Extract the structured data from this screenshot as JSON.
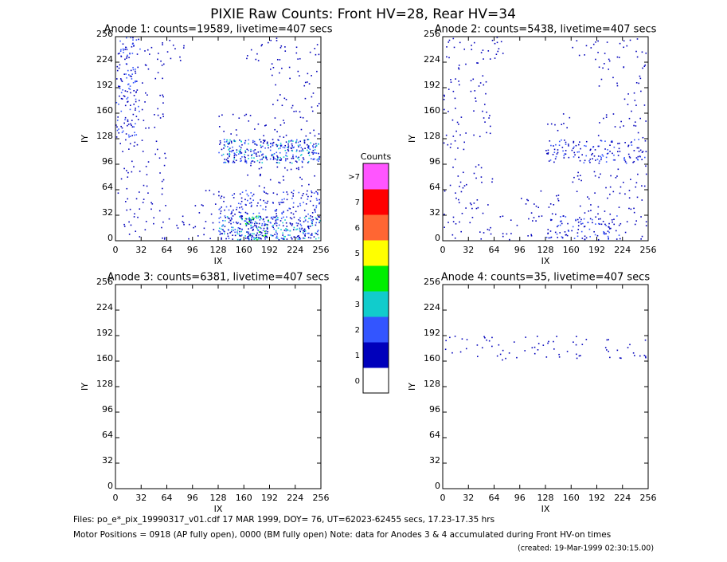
{
  "chart_data": {
    "type": "heatmap",
    "title": "PIXIE Raw Counts:  Front HV=28, Rear HV=34",
    "panels": [
      {
        "title": "Anode 1: counts=19589, livetime=407 secs",
        "xlabel": "IX",
        "ylabel": "IY",
        "xlim": [
          0,
          256
        ],
        "ylim": [
          0,
          256
        ],
        "xticks": [
          0,
          32,
          64,
          96,
          128,
          160,
          192,
          224,
          256
        ],
        "yticks": [
          0,
          32,
          64,
          96,
          128,
          160,
          192,
          224,
          256
        ],
        "density": [
          [
            2,
            1,
            1,
            0,
            0,
            1,
            1,
            1
          ],
          [
            2,
            1,
            0,
            0,
            0,
            0,
            1,
            1
          ],
          [
            2,
            1,
            0,
            0,
            0,
            0,
            1,
            1
          ],
          [
            2,
            1,
            0,
            0,
            1,
            1,
            1,
            1
          ],
          [
            1,
            1,
            0,
            0,
            3,
            3,
            3,
            3
          ],
          [
            1,
            1,
            0,
            0,
            0,
            1,
            1,
            1
          ],
          [
            1,
            1,
            0,
            1,
            2,
            2,
            2,
            2
          ],
          [
            1,
            1,
            1,
            1,
            3,
            4,
            3,
            3
          ]
        ]
      },
      {
        "title": "Anode 2: counts=5438, livetime=407 secs",
        "xlabel": "IX",
        "ylabel": "IY",
        "xlim": [
          0,
          256
        ],
        "ylim": [
          0,
          256
        ],
        "xticks": [
          0,
          32,
          64,
          96,
          128,
          160,
          192,
          224,
          256
        ],
        "yticks": [
          0,
          32,
          64,
          96,
          128,
          160,
          192,
          224,
          256
        ],
        "density": [
          [
            1,
            1,
            1,
            0,
            0,
            1,
            1,
            1
          ],
          [
            1,
            1,
            0,
            0,
            0,
            0,
            1,
            1
          ],
          [
            1,
            1,
            0,
            0,
            0,
            0,
            0,
            1
          ],
          [
            1,
            1,
            0,
            0,
            1,
            0,
            1,
            1
          ],
          [
            1,
            0,
            0,
            0,
            2,
            2,
            2,
            2
          ],
          [
            1,
            1,
            0,
            0,
            0,
            1,
            1,
            1
          ],
          [
            1,
            1,
            0,
            1,
            1,
            1,
            1,
            1
          ],
          [
            1,
            1,
            1,
            1,
            2,
            2,
            2,
            1
          ]
        ]
      },
      {
        "title": "Anode 3: counts=6381, livetime=407 secs",
        "xlabel": "IX",
        "ylabel": "IY",
        "xlim": [
          0,
          256
        ],
        "ylim": [
          0,
          256
        ],
        "xticks": [
          0,
          32,
          64,
          96,
          128,
          160,
          192,
          224,
          256
        ],
        "yticks": [
          0,
          32,
          64,
          96,
          128,
          160,
          192,
          224,
          256
        ],
        "density": [
          [
            0,
            0,
            0,
            0,
            0,
            0,
            0,
            0
          ],
          [
            0,
            0,
            0,
            0,
            0,
            0,
            0,
            0
          ],
          [
            0,
            0,
            0,
            0,
            0,
            0,
            0,
            0
          ],
          [
            0,
            0,
            0,
            0,
            0,
            0,
            0,
            0
          ],
          [
            0,
            0,
            0,
            0,
            0,
            0,
            0,
            0
          ],
          [
            0,
            0,
            0,
            0,
            0,
            0,
            0,
            0
          ],
          [
            0,
            0,
            0,
            0,
            0,
            0,
            0,
            0
          ],
          [
            0,
            0,
            0,
            0,
            0,
            0,
            0,
            0
          ]
        ]
      },
      {
        "title": "Anode 4: counts=35, livetime=407 secs",
        "xlabel": "IX",
        "ylabel": "IY",
        "xlim": [
          0,
          256
        ],
        "ylim": [
          0,
          256
        ],
        "xticks": [
          0,
          32,
          64,
          96,
          128,
          160,
          192,
          224,
          256
        ],
        "yticks": [
          0,
          32,
          64,
          96,
          128,
          160,
          192,
          224,
          256
        ],
        "density": [
          [
            0,
            0,
            0,
            0,
            0,
            0,
            0,
            0
          ],
          [
            0,
            0,
            0,
            0,
            0,
            0,
            0,
            0
          ],
          [
            1,
            1,
            1,
            1,
            1,
            1,
            1,
            1
          ],
          [
            0,
            0,
            0,
            0,
            0,
            0,
            0,
            0
          ],
          [
            0,
            0,
            0,
            0,
            0,
            0,
            0,
            0
          ],
          [
            0,
            0,
            0,
            0,
            0,
            0,
            0,
            0
          ],
          [
            0,
            0,
            0,
            0,
            0,
            0,
            0,
            0
          ],
          [
            0,
            0,
            0,
            0,
            0,
            0,
            0,
            0
          ]
        ]
      }
    ],
    "colorbar": {
      "title": "Counts",
      "labels": [
        "0",
        "1",
        "2",
        "3",
        "4",
        "5",
        "6",
        "7",
        ">7"
      ],
      "colors": [
        "#ffffff",
        "#0000bb",
        "#3355ff",
        "#11cccc",
        "#00ee00",
        "#ffff00",
        "#ff6633",
        "#ff0000",
        "#ff55ff"
      ]
    },
    "footer": [
      "Files: po_e*_pix_19990317_v01.cdf    17 MAR 1999, DOY= 76, UT=62023-62455 secs, 17.23-17.35 hrs",
      "Motor Positions = 0918 (AP fully open), 0000 (BM fully open)    Note: data for Anodes 3 & 4 accumulated during Front HV-on times",
      "(created: 19-Mar-1999 02:30:15.00)"
    ]
  }
}
